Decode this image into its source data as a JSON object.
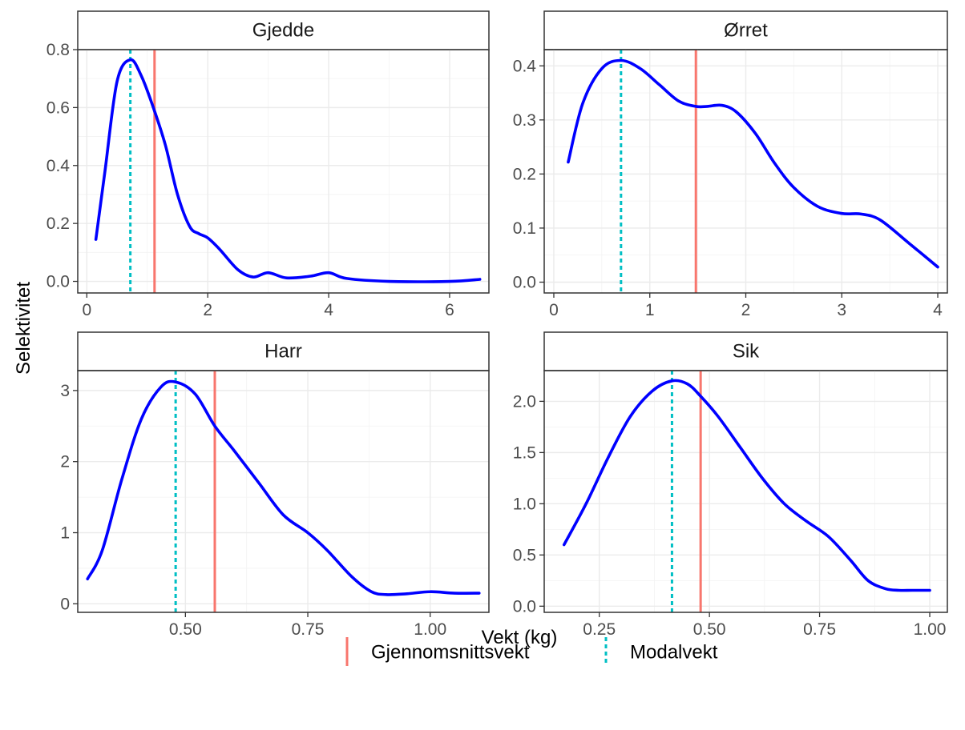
{
  "chart_data": {
    "type": "line",
    "xlabel": "Vekt (kg)",
    "ylabel": "Selektivitet",
    "grid": true,
    "legend_position": "bottom",
    "legend": [
      {
        "label": "Gjennomsnittsvekt",
        "color": "#F8766D",
        "style": "solid"
      },
      {
        "label": "Modalvekt",
        "color": "#00BFC4",
        "style": "dashed"
      }
    ],
    "line_color": "#0000FF",
    "panels": [
      {
        "title": "Gjedde",
        "xlim": [
          -0.15,
          6.65
        ],
        "ylim": [
          -0.04,
          0.8
        ],
        "xticks": [
          0,
          2,
          4,
          6
        ],
        "xtick_labels": [
          "0",
          "2",
          "4",
          "6"
        ],
        "yticks": [
          0,
          0.2,
          0.4,
          0.6,
          0.8
        ],
        "ytick_labels": [
          "0.0",
          "0.2",
          "0.4",
          "0.6",
          "0.8"
        ],
        "mean_weight": 1.12,
        "modal_weight": 0.72,
        "x": [
          0.15,
          0.3,
          0.5,
          0.72,
          0.9,
          1.1,
          1.3,
          1.5,
          1.7,
          1.85,
          2.0,
          2.2,
          2.5,
          2.75,
          3.0,
          3.3,
          3.7,
          4.0,
          4.3,
          5.0,
          6.0,
          6.5
        ],
        "y": [
          0.145,
          0.38,
          0.69,
          0.765,
          0.71,
          0.6,
          0.47,
          0.3,
          0.19,
          0.165,
          0.15,
          0.11,
          0.04,
          0.015,
          0.03,
          0.012,
          0.018,
          0.03,
          0.01,
          0.0,
          0.0,
          0.007
        ]
      },
      {
        "title": "Ørret",
        "xlim": [
          -0.1,
          4.1
        ],
        "ylim": [
          -0.02,
          0.43
        ],
        "xticks": [
          0,
          1,
          2,
          3,
          4
        ],
        "xtick_labels": [
          "0",
          "1",
          "2",
          "3",
          "4"
        ],
        "yticks": [
          0,
          0.1,
          0.2,
          0.3,
          0.4
        ],
        "ytick_labels": [
          "0.0",
          "0.1",
          "0.2",
          "0.3",
          "0.4"
        ],
        "mean_weight": 1.48,
        "modal_weight": 0.7,
        "x": [
          0.15,
          0.3,
          0.5,
          0.7,
          0.9,
          1.1,
          1.3,
          1.48,
          1.6,
          1.75,
          1.9,
          2.1,
          2.3,
          2.5,
          2.75,
          3.0,
          3.2,
          3.4,
          3.7,
          4.0
        ],
        "y": [
          0.222,
          0.33,
          0.395,
          0.41,
          0.395,
          0.365,
          0.335,
          0.325,
          0.325,
          0.327,
          0.315,
          0.275,
          0.22,
          0.175,
          0.14,
          0.127,
          0.126,
          0.115,
          0.072,
          0.028
        ]
      },
      {
        "title": "Harr",
        "xlim": [
          0.28,
          1.12
        ],
        "ylim": [
          -0.12,
          3.28
        ],
        "xticks": [
          0.5,
          0.75,
          1.0
        ],
        "xtick_labels": [
          "0.50",
          "0.75",
          "1.00"
        ],
        "yticks": [
          0,
          1,
          2,
          3
        ],
        "ytick_labels": [
          "0",
          "1",
          "2",
          "3"
        ],
        "mean_weight": 0.56,
        "modal_weight": 0.48,
        "x": [
          0.3,
          0.33,
          0.37,
          0.41,
          0.45,
          0.48,
          0.52,
          0.56,
          0.6,
          0.65,
          0.7,
          0.75,
          0.79,
          0.84,
          0.88,
          0.91,
          0.95,
          1.0,
          1.05,
          1.1
        ],
        "y": [
          0.35,
          0.75,
          1.75,
          2.6,
          3.05,
          3.12,
          2.95,
          2.5,
          2.15,
          1.7,
          1.25,
          1.0,
          0.75,
          0.38,
          0.17,
          0.13,
          0.14,
          0.17,
          0.15,
          0.15
        ]
      },
      {
        "title": "Sik",
        "xlim": [
          0.125,
          1.04
        ],
        "ylim": [
          -0.06,
          2.3
        ],
        "xticks": [
          0.25,
          0.5,
          0.75,
          1.0
        ],
        "xtick_labels": [
          "0.25",
          "0.50",
          "0.75",
          "1.00"
        ],
        "yticks": [
          0,
          0.5,
          1.0,
          1.5,
          2.0
        ],
        "ytick_labels": [
          "0.0",
          "0.5",
          "1.0",
          "1.5",
          "2.0"
        ],
        "mean_weight": 0.48,
        "modal_weight": 0.415,
        "x": [
          0.17,
          0.22,
          0.27,
          0.32,
          0.37,
          0.415,
          0.45,
          0.48,
          0.52,
          0.57,
          0.62,
          0.67,
          0.72,
          0.77,
          0.82,
          0.86,
          0.9,
          0.93,
          0.96,
          1.0
        ],
        "y": [
          0.6,
          1.0,
          1.45,
          1.85,
          2.1,
          2.2,
          2.17,
          2.05,
          1.85,
          1.55,
          1.25,
          1.0,
          0.83,
          0.68,
          0.45,
          0.25,
          0.17,
          0.155,
          0.155,
          0.155
        ]
      }
    ]
  }
}
